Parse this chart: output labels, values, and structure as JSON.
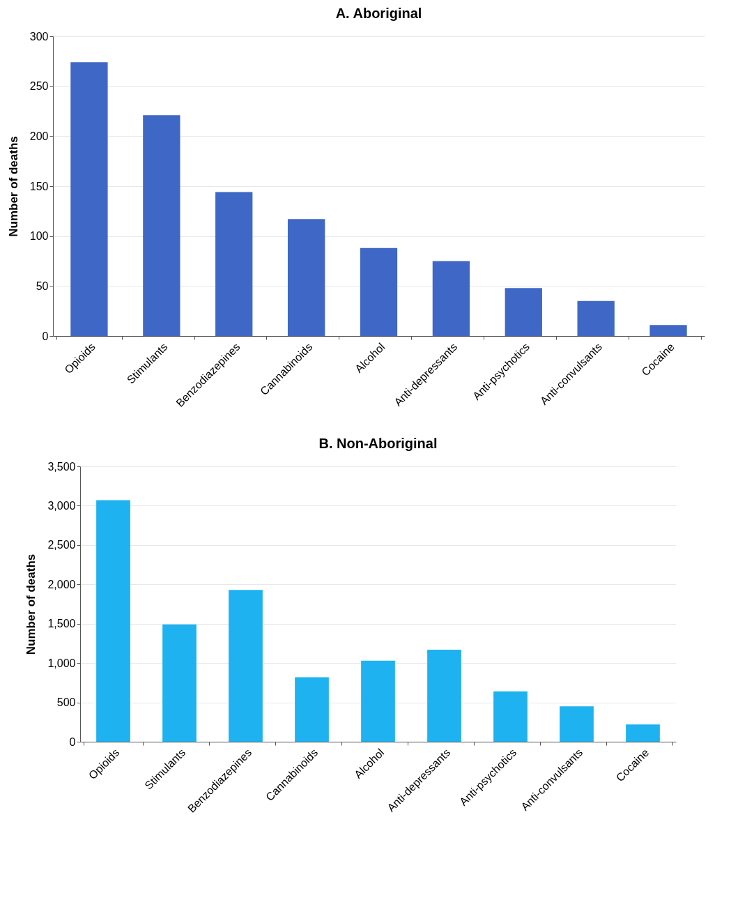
{
  "chart_data": [
    {
      "type": "bar",
      "title": "A. Aboriginal",
      "ylabel": "Number of deaths",
      "categories": [
        "Opioids",
        "Stimulants",
        "Benzodiazepines",
        "Cannabinoids",
        "Alcohol",
        "Anti-depressants",
        "Anti-psychotics",
        "Anti-convulsants",
        "Cocaine"
      ],
      "series": [
        {
          "color": "#3f67c6",
          "values": [
            274,
            221,
            144,
            117,
            88,
            75,
            48,
            35,
            11
          ]
        }
      ],
      "ylim": [
        0,
        300
      ],
      "yticks": [
        0,
        50,
        100,
        150,
        200,
        250,
        300
      ],
      "grid": "y"
    },
    {
      "type": "bar",
      "title": "B. Non-Aboriginal",
      "ylabel": "Number of deaths",
      "categories": [
        "Opioids",
        "Stimulants",
        "Benzodiazepines",
        "Cannabinoids",
        "Alcohol",
        "Anti-depressants",
        "Anti-psychotics",
        "Anti-convulsants",
        "Cocaine"
      ],
      "series": [
        {
          "color": "#1fb2f0",
          "values": [
            3070,
            1490,
            1930,
            820,
            1030,
            1170,
            640,
            450,
            220
          ]
        }
      ],
      "ylim": [
        0,
        3500
      ],
      "yticks": [
        0,
        500,
        {
          "value": 1000,
          "label": "1,000"
        },
        {
          "value": 1500,
          "label": "1,500"
        },
        {
          "value": 2000,
          "label": "2,000"
        },
        {
          "value": 2500,
          "label": "2,500"
        },
        {
          "value": 3000,
          "label": "3,000"
        },
        {
          "value": 3500,
          "label": "3,500"
        }
      ],
      "grid": "y"
    }
  ]
}
